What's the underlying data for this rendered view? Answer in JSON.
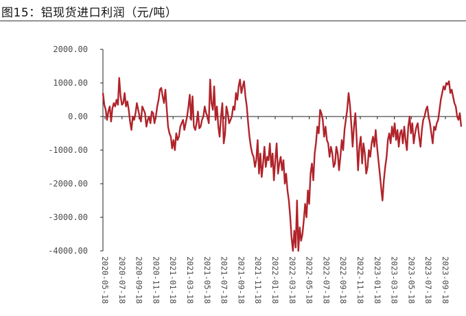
{
  "header": {
    "title": "图15：铝现货进口利润（元/吨）"
  },
  "chart_data": {
    "type": "line",
    "title": "图15：铝现货进口利润（元/吨）",
    "xlabel": "",
    "ylabel": "",
    "ylim": [
      -4000,
      2000
    ],
    "yticks": [
      "2000.00",
      "1000.00",
      "0.00",
      "-1000.00",
      "-2000.00",
      "-3000.00",
      "-4000.00"
    ],
    "ytick_values": [
      2000,
      1000,
      0,
      -1000,
      -2000,
      -3000,
      -4000
    ],
    "xticks": [
      "2020-05-18",
      "2020-07-18",
      "2020-09-18",
      "2020-11-18",
      "2021-01-18",
      "2021-03-18",
      "2021-05-18",
      "2021-07-18",
      "2021-09-18",
      "2021-11-18",
      "2022-01-18",
      "2022-03-18",
      "2022-05-18",
      "2022-07-18",
      "2022-09-18",
      "2022-11-18",
      "2023-01-18",
      "2023-03-18",
      "2023-05-18",
      "2023-07-18",
      "2023-09-18"
    ],
    "grid": false,
    "legend": null,
    "line_color": "#B0232A",
    "series": [
      {
        "name": "铝现货进口利润",
        "x_start": "2020-05-18",
        "x_end": "2023-10-31",
        "values": [
          700,
          350,
          200,
          -100,
          150,
          300,
          -150,
          250,
          400,
          300,
          500,
          350,
          1150,
          600,
          350,
          400,
          700,
          300,
          450,
          200,
          -150,
          -400,
          0,
          -100,
          100,
          400,
          200,
          0,
          -150,
          300,
          200,
          100,
          -300,
          -100,
          0,
          -200,
          150,
          100,
          -200,
          0,
          300,
          500,
          800,
          850,
          600,
          400,
          800,
          250,
          -300,
          -500,
          -600,
          -950,
          -700,
          -1000,
          -500,
          -700,
          -600,
          -300,
          -200,
          -100,
          -400,
          -200,
          0,
          300,
          650,
          -100,
          600,
          -300,
          -400,
          -200,
          150,
          -350,
          -300,
          -100,
          0,
          300,
          100,
          0,
          -200,
          1100,
          400,
          200,
          900,
          -100,
          300,
          -300,
          -600,
          0,
          400,
          -800,
          -500,
          300,
          100,
          -200,
          -100,
          0,
          300,
          200,
          700,
          500,
          900,
          1100,
          700,
          900,
          1050,
          600,
          300,
          -200,
          -600,
          -900,
          -1100,
          -1200,
          -1500,
          -1300,
          -700,
          -1700,
          -1100,
          -1800,
          -1400,
          -900,
          -1500,
          -1200,
          -1300,
          -800,
          -1500,
          -1100,
          -1900,
          -1300,
          -800,
          -1700,
          -1400,
          -1200,
          -1600,
          -1300,
          -2000,
          -1700,
          -2200,
          -2500,
          -3000,
          -3600,
          -4000,
          -3400,
          -3900,
          -2500,
          -4000,
          -3300,
          -3700,
          -3500,
          -3100,
          -2600,
          -3000,
          -2200,
          -2600,
          -1700,
          -1400,
          -1900,
          -1100,
          -800,
          -300,
          -500,
          200,
          100,
          -100,
          -600,
          -300,
          -700,
          -800,
          -1200,
          -900,
          -1100,
          -1500,
          -1400,
          -900,
          -1100,
          -1600,
          -1200,
          -700,
          -1000,
          -400,
          -100,
          200,
          700,
          350,
          -200,
          -900,
          -300,
          100,
          -700,
          -1600,
          -900,
          -600,
          -1400,
          -800,
          -1100,
          -1700,
          -1500,
          -1000,
          -1200,
          -800,
          -600,
          -900,
          -400,
          -900,
          -1300,
          -1700,
          -2100,
          -2500,
          -1900,
          -1500,
          -1200,
          -700,
          -500,
          -800,
          -300,
          -600,
          -200,
          -700,
          -400,
          -900,
          -500,
          -400,
          -800,
          -300,
          -700,
          -1000,
          -300,
          0,
          -500,
          -200,
          -800,
          -500,
          -300,
          -200,
          -600,
          -900,
          -400,
          -100,
          0,
          200,
          300,
          0,
          -200,
          -500,
          -800,
          -300,
          -400,
          -200,
          -100,
          200,
          500,
          700,
          900,
          800,
          1000,
          950,
          1050,
          700,
          800,
          600,
          400,
          300,
          0,
          -100,
          100,
          -300
        ]
      }
    ]
  }
}
